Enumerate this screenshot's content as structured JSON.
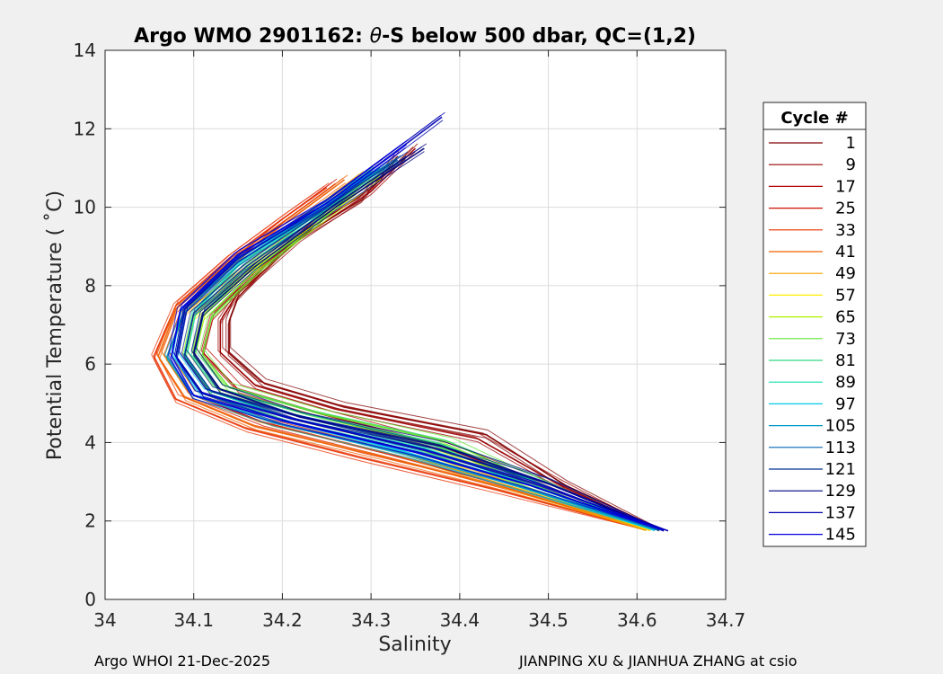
{
  "chart_data": {
    "type": "line",
    "title_prefix": "Argo WMO 2901162: ",
    "title_theta": "θ",
    "title_suffix": "-S below 500 dbar,  QC=(1,2)",
    "xlabel": "Salinity",
    "ylabel": "Potential Temperature ( ˚C)",
    "xlim": [
      34.0,
      34.7
    ],
    "ylim": [
      0,
      14
    ],
    "xticks": [
      "34",
      "34.1",
      "34.2",
      "34.3",
      "34.4",
      "34.5",
      "34.6",
      "34.7"
    ],
    "yticks": [
      "0",
      "2",
      "4",
      "6",
      "8",
      "10",
      "12",
      "14"
    ],
    "grid": true,
    "legend_title": "Cycle #",
    "legend_position": "right",
    "footer_left": "Argo WHOI 21-Dec-2025",
    "footer_right": "JIANPING XU & JIANHUA ZHANG at csio",
    "legend": [
      {
        "label": "1",
        "color": "#800000"
      },
      {
        "label": "9",
        "color": "#9a0000"
      },
      {
        "label": "17",
        "color": "#b40000"
      },
      {
        "label": "25",
        "color": "#d01000"
      },
      {
        "label": "33",
        "color": "#e83000"
      },
      {
        "label": "41",
        "color": "#f06000"
      },
      {
        "label": "49",
        "color": "#f4a000"
      },
      {
        "label": "57",
        "color": "#ffee00"
      },
      {
        "label": "65",
        "color": "#b0f000"
      },
      {
        "label": "73",
        "color": "#60e830"
      },
      {
        "label": "81",
        "color": "#30d880"
      },
      {
        "label": "89",
        "color": "#10e0b0"
      },
      {
        "label": "97",
        "color": "#00c8e8"
      },
      {
        "label": "105",
        "color": "#0098c8"
      },
      {
        "label": "113",
        "color": "#0060b0"
      },
      {
        "label": "121",
        "color": "#003090"
      },
      {
        "label": "129",
        "color": "#000080"
      },
      {
        "label": "137",
        "color": "#0000b0"
      },
      {
        "label": "145",
        "color": "#0000e0"
      }
    ],
    "series": [
      {
        "cycle": 1,
        "color": "#800000",
        "points": [
          [
            34.63,
            1.75
          ],
          [
            34.52,
            2.9
          ],
          [
            34.43,
            4.2
          ],
          [
            34.27,
            4.9
          ],
          [
            34.18,
            5.5
          ],
          [
            34.14,
            6.3
          ],
          [
            34.14,
            7.1
          ],
          [
            34.15,
            7.7
          ],
          [
            34.21,
            9.1
          ],
          [
            34.29,
            10.2
          ],
          [
            34.33,
            11.3
          ]
        ]
      },
      {
        "cycle": 9,
        "color": "#9a0000",
        "points": [
          [
            34.625,
            1.75
          ],
          [
            34.51,
            2.95
          ],
          [
            34.42,
            4.1
          ],
          [
            34.26,
            4.85
          ],
          [
            34.17,
            5.45
          ],
          [
            34.13,
            6.3
          ],
          [
            34.13,
            7.1
          ],
          [
            34.15,
            7.8
          ],
          [
            34.22,
            9.2
          ],
          [
            34.3,
            10.4
          ],
          [
            34.35,
            11.5
          ]
        ]
      },
      {
        "cycle": 17,
        "color": "#b40000",
        "points": [
          [
            34.62,
            1.76
          ],
          [
            34.49,
            2.95
          ],
          [
            34.38,
            3.9
          ],
          [
            34.24,
            4.75
          ],
          [
            34.15,
            5.35
          ],
          [
            34.11,
            6.3
          ],
          [
            34.12,
            7.2
          ],
          [
            34.15,
            7.9
          ],
          [
            34.22,
            9.3
          ],
          [
            34.28,
            10.5
          ]
        ]
      },
      {
        "cycle": 25,
        "color": "#d01000",
        "points": [
          [
            34.615,
            1.76
          ],
          [
            34.46,
            2.85
          ],
          [
            34.32,
            3.7
          ],
          [
            34.18,
            4.5
          ],
          [
            34.1,
            5.2
          ],
          [
            34.07,
            6.2
          ],
          [
            34.09,
            7.4
          ],
          [
            34.14,
            8.5
          ],
          [
            34.2,
            9.6
          ],
          [
            34.26,
            10.6
          ]
        ]
      },
      {
        "cycle": 33,
        "color": "#e83000",
        "points": [
          [
            34.61,
            1.77
          ],
          [
            34.44,
            2.8
          ],
          [
            34.29,
            3.6
          ],
          [
            34.16,
            4.35
          ],
          [
            34.08,
            5.1
          ],
          [
            34.055,
            6.2
          ],
          [
            34.08,
            7.5
          ],
          [
            34.14,
            8.7
          ],
          [
            34.2,
            9.7
          ],
          [
            34.25,
            10.5
          ]
        ]
      },
      {
        "cycle": 41,
        "color": "#f06000",
        "points": [
          [
            34.61,
            1.77
          ],
          [
            34.45,
            2.85
          ],
          [
            34.31,
            3.65
          ],
          [
            34.17,
            4.4
          ],
          [
            34.09,
            5.15
          ],
          [
            34.06,
            6.2
          ],
          [
            34.08,
            7.4
          ],
          [
            34.14,
            8.6
          ],
          [
            34.21,
            9.7
          ],
          [
            34.27,
            10.7
          ]
        ]
      },
      {
        "cycle": 49,
        "color": "#f4a000",
        "points": [
          [
            34.61,
            1.76
          ],
          [
            34.46,
            2.85
          ],
          [
            34.33,
            3.75
          ],
          [
            34.19,
            4.5
          ],
          [
            34.1,
            5.2
          ],
          [
            34.07,
            6.2
          ],
          [
            34.09,
            7.3
          ],
          [
            34.15,
            8.4
          ],
          [
            34.22,
            9.6
          ],
          [
            34.29,
            10.8
          ]
        ]
      },
      {
        "cycle": 57,
        "color": "#ffee00",
        "points": [
          [
            34.615,
            1.76
          ],
          [
            34.47,
            2.9
          ],
          [
            34.35,
            3.85
          ],
          [
            34.21,
            4.6
          ],
          [
            34.12,
            5.3
          ],
          [
            34.09,
            6.2
          ],
          [
            34.1,
            7.2
          ],
          [
            34.15,
            8.2
          ],
          [
            34.23,
            9.5
          ],
          [
            34.3,
            10.7
          ]
        ]
      },
      {
        "cycle": 65,
        "color": "#b0f000",
        "points": [
          [
            34.62,
            1.76
          ],
          [
            34.48,
            2.9
          ],
          [
            34.37,
            3.95
          ],
          [
            34.23,
            4.7
          ],
          [
            34.13,
            5.35
          ],
          [
            34.1,
            6.25
          ],
          [
            34.11,
            7.2
          ],
          [
            34.16,
            8.3
          ],
          [
            34.24,
            9.6
          ],
          [
            34.31,
            10.8
          ]
        ]
      },
      {
        "cycle": 73,
        "color": "#60e830",
        "points": [
          [
            34.62,
            1.77
          ],
          [
            34.49,
            2.95
          ],
          [
            34.39,
            4.0
          ],
          [
            34.24,
            4.75
          ],
          [
            34.14,
            5.4
          ],
          [
            34.11,
            6.25
          ],
          [
            34.12,
            7.2
          ],
          [
            34.17,
            8.3
          ],
          [
            34.24,
            9.6
          ],
          [
            34.3,
            10.8
          ]
        ]
      },
      {
        "cycle": 81,
        "color": "#30d880",
        "points": [
          [
            34.62,
            1.77
          ],
          [
            34.49,
            2.95
          ],
          [
            34.38,
            3.95
          ],
          [
            34.23,
            4.7
          ],
          [
            34.13,
            5.35
          ],
          [
            34.1,
            6.2
          ],
          [
            34.11,
            7.3
          ],
          [
            34.16,
            8.4
          ],
          [
            34.23,
            9.6
          ],
          [
            34.3,
            10.9
          ]
        ]
      },
      {
        "cycle": 89,
        "color": "#10e0b0",
        "points": [
          [
            34.62,
            1.77
          ],
          [
            34.48,
            2.9
          ],
          [
            34.36,
            3.85
          ],
          [
            34.21,
            4.6
          ],
          [
            34.12,
            5.3
          ],
          [
            34.09,
            6.2
          ],
          [
            34.1,
            7.3
          ],
          [
            34.15,
            8.5
          ],
          [
            34.23,
            9.7
          ],
          [
            34.3,
            10.9
          ]
        ]
      },
      {
        "cycle": 97,
        "color": "#00c8e8",
        "points": [
          [
            34.62,
            1.76
          ],
          [
            34.47,
            2.85
          ],
          [
            34.34,
            3.75
          ],
          [
            34.2,
            4.55
          ],
          [
            34.11,
            5.25
          ],
          [
            34.08,
            6.2
          ],
          [
            34.09,
            7.4
          ],
          [
            34.15,
            8.6
          ],
          [
            34.23,
            9.8
          ],
          [
            34.31,
            11.0
          ]
        ]
      },
      {
        "cycle": 105,
        "color": "#0098c8",
        "points": [
          [
            34.625,
            1.76
          ],
          [
            34.47,
            2.85
          ],
          [
            34.34,
            3.7
          ],
          [
            34.19,
            4.5
          ],
          [
            34.1,
            5.2
          ],
          [
            34.07,
            6.2
          ],
          [
            34.09,
            7.4
          ],
          [
            34.15,
            8.7
          ],
          [
            34.24,
            9.9
          ],
          [
            34.32,
            11.1
          ]
        ]
      },
      {
        "cycle": 113,
        "color": "#0060b0",
        "points": [
          [
            34.625,
            1.76
          ],
          [
            34.48,
            2.9
          ],
          [
            34.35,
            3.75
          ],
          [
            34.2,
            4.55
          ],
          [
            34.11,
            5.25
          ],
          [
            34.08,
            6.2
          ],
          [
            34.09,
            7.4
          ],
          [
            34.15,
            8.6
          ],
          [
            34.24,
            9.9
          ],
          [
            34.33,
            11.2
          ]
        ]
      },
      {
        "cycle": 121,
        "color": "#003090",
        "points": [
          [
            34.63,
            1.75
          ],
          [
            34.5,
            2.95
          ],
          [
            34.37,
            3.85
          ],
          [
            34.22,
            4.65
          ],
          [
            34.12,
            5.3
          ],
          [
            34.09,
            6.25
          ],
          [
            34.1,
            7.3
          ],
          [
            34.16,
            8.5
          ],
          [
            34.25,
            9.9
          ],
          [
            34.34,
            11.3
          ]
        ]
      },
      {
        "cycle": 129,
        "color": "#000080",
        "points": [
          [
            34.63,
            1.75
          ],
          [
            34.5,
            2.95
          ],
          [
            34.38,
            3.9
          ],
          [
            34.22,
            4.65
          ],
          [
            34.13,
            5.35
          ],
          [
            34.1,
            6.3
          ],
          [
            34.11,
            7.3
          ],
          [
            34.17,
            8.5
          ],
          [
            34.26,
            10.0
          ],
          [
            34.36,
            11.5
          ]
        ]
      },
      {
        "cycle": 137,
        "color": "#0000b0",
        "points": [
          [
            34.635,
            1.75
          ],
          [
            34.49,
            2.9
          ],
          [
            34.36,
            3.8
          ],
          [
            34.21,
            4.6
          ],
          [
            34.11,
            5.25
          ],
          [
            34.08,
            6.2
          ],
          [
            34.09,
            7.4
          ],
          [
            34.15,
            8.7
          ],
          [
            34.25,
            10.1
          ],
          [
            34.38,
            12.3
          ]
        ]
      },
      {
        "cycle": 145,
        "color": "#0000e0",
        "points": [
          [
            34.63,
            1.76
          ],
          [
            34.48,
            2.9
          ],
          [
            34.35,
            3.75
          ],
          [
            34.2,
            4.55
          ],
          [
            34.1,
            5.2
          ],
          [
            34.075,
            6.2
          ],
          [
            34.085,
            7.4
          ],
          [
            34.15,
            8.8
          ],
          [
            34.25,
            10.1
          ],
          [
            34.34,
            11.6
          ]
        ]
      }
    ]
  }
}
